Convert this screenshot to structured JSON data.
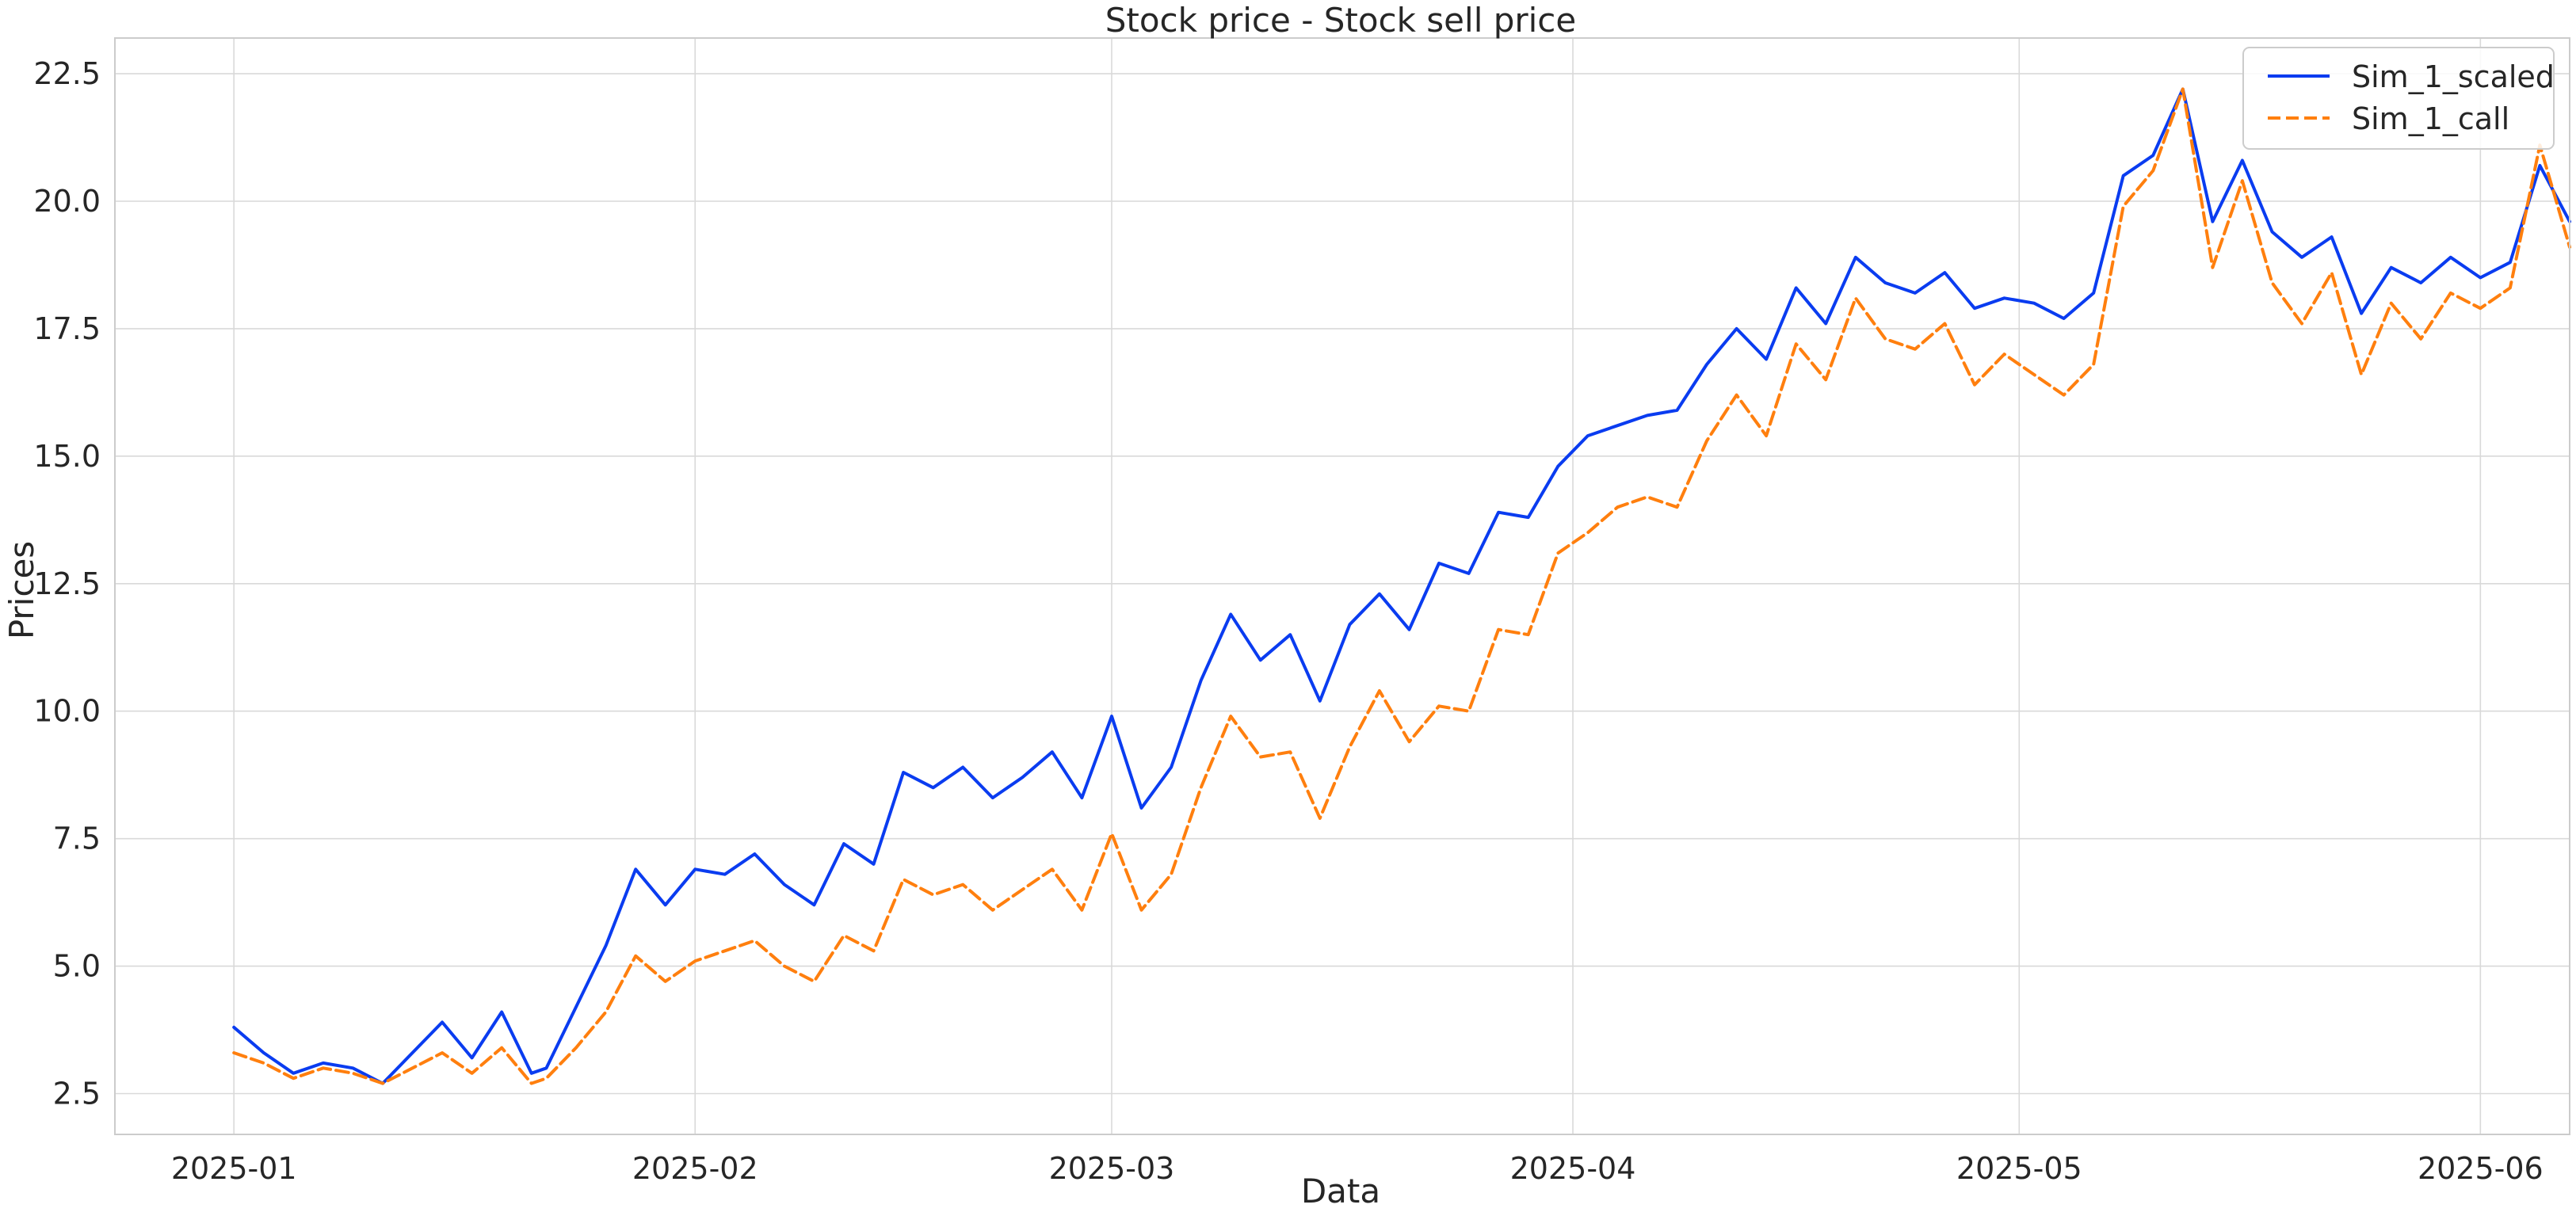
{
  "chart_data": {
    "type": "line",
    "title": "Stock price - Stock sell price",
    "xlabel": "Data",
    "ylabel": "Prices",
    "grid": true,
    "legend_position": "top-right",
    "xlim": [
      "2024-12-24",
      "2025-06-07"
    ],
    "ylim": [
      1.7,
      23.2
    ],
    "x_ticks": [
      "2025-01",
      "2025-02",
      "2025-03",
      "2025-04",
      "2025-05",
      "2025-06"
    ],
    "y_ticks": [
      2.5,
      5.0,
      7.5,
      10.0,
      12.5,
      15.0,
      17.5,
      20.0,
      22.5
    ],
    "y_tick_labels": [
      "2.5",
      "5.0",
      "7.5",
      "10.0",
      "12.5",
      "15.0",
      "17.5",
      "20.0",
      "22.5"
    ],
    "series": [
      {
        "name": "Sim_1_scaled",
        "color": "#0a3cf0",
        "style": "solid",
        "points": [
          [
            "2025-01-01",
            3.8
          ],
          [
            "2025-01-03",
            3.3
          ],
          [
            "2025-01-05",
            2.9
          ],
          [
            "2025-01-07",
            3.1
          ],
          [
            "2025-01-09",
            3.0
          ],
          [
            "2025-01-11",
            2.7
          ],
          [
            "2025-01-13",
            3.3
          ],
          [
            "2025-01-15",
            3.9
          ],
          [
            "2025-01-17",
            3.2
          ],
          [
            "2025-01-19",
            4.1
          ],
          [
            "2025-01-21",
            2.9
          ],
          [
            "2025-01-22",
            3.0
          ],
          [
            "2025-01-24",
            4.2
          ],
          [
            "2025-01-26",
            5.4
          ],
          [
            "2025-01-28",
            6.9
          ],
          [
            "2025-01-30",
            6.2
          ],
          [
            "2025-02-01",
            6.9
          ],
          [
            "2025-02-03",
            6.8
          ],
          [
            "2025-02-05",
            7.2
          ],
          [
            "2025-02-07",
            6.6
          ],
          [
            "2025-02-09",
            6.2
          ],
          [
            "2025-02-11",
            7.4
          ],
          [
            "2025-02-13",
            7.0
          ],
          [
            "2025-02-15",
            8.8
          ],
          [
            "2025-02-17",
            8.5
          ],
          [
            "2025-02-19",
            8.9
          ],
          [
            "2025-02-21",
            8.3
          ],
          [
            "2025-02-23",
            8.7
          ],
          [
            "2025-02-25",
            9.2
          ],
          [
            "2025-02-27",
            8.3
          ],
          [
            "2025-03-01",
            9.9
          ],
          [
            "2025-03-03",
            8.1
          ],
          [
            "2025-03-05",
            8.9
          ],
          [
            "2025-03-07",
            10.6
          ],
          [
            "2025-03-09",
            11.9
          ],
          [
            "2025-03-11",
            11.0
          ],
          [
            "2025-03-13",
            11.5
          ],
          [
            "2025-03-15",
            10.2
          ],
          [
            "2025-03-17",
            11.7
          ],
          [
            "2025-03-19",
            12.3
          ],
          [
            "2025-03-21",
            11.6
          ],
          [
            "2025-03-23",
            12.9
          ],
          [
            "2025-03-25",
            12.7
          ],
          [
            "2025-03-27",
            13.9
          ],
          [
            "2025-03-29",
            13.8
          ],
          [
            "2025-03-31",
            14.8
          ],
          [
            "2025-04-02",
            15.4
          ],
          [
            "2025-04-04",
            15.6
          ],
          [
            "2025-04-06",
            15.8
          ],
          [
            "2025-04-08",
            15.9
          ],
          [
            "2025-04-10",
            16.8
          ],
          [
            "2025-04-12",
            17.5
          ],
          [
            "2025-04-14",
            16.9
          ],
          [
            "2025-04-16",
            18.3
          ],
          [
            "2025-04-18",
            17.6
          ],
          [
            "2025-04-20",
            18.9
          ],
          [
            "2025-04-22",
            18.4
          ],
          [
            "2025-04-24",
            18.2
          ],
          [
            "2025-04-26",
            18.6
          ],
          [
            "2025-04-28",
            17.9
          ],
          [
            "2025-04-30",
            18.1
          ],
          [
            "2025-05-02",
            18.0
          ],
          [
            "2025-05-04",
            17.7
          ],
          [
            "2025-05-06",
            18.2
          ],
          [
            "2025-05-08",
            20.5
          ],
          [
            "2025-05-10",
            20.9
          ],
          [
            "2025-05-12",
            22.2
          ],
          [
            "2025-05-14",
            19.6
          ],
          [
            "2025-05-16",
            20.8
          ],
          [
            "2025-05-18",
            19.4
          ],
          [
            "2025-05-20",
            18.9
          ],
          [
            "2025-05-22",
            19.3
          ],
          [
            "2025-05-24",
            17.8
          ],
          [
            "2025-05-26",
            18.7
          ],
          [
            "2025-05-28",
            18.4
          ],
          [
            "2025-05-30",
            18.9
          ],
          [
            "2025-06-01",
            18.5
          ],
          [
            "2025-06-03",
            18.8
          ],
          [
            "2025-06-05",
            20.7
          ],
          [
            "2025-06-07",
            19.6
          ]
        ]
      },
      {
        "name": "Sim_1_call",
        "color": "#ff7f0e",
        "style": "dashed",
        "points": [
          [
            "2025-01-01",
            3.3
          ],
          [
            "2025-01-03",
            3.1
          ],
          [
            "2025-01-05",
            2.8
          ],
          [
            "2025-01-07",
            3.0
          ],
          [
            "2025-01-09",
            2.9
          ],
          [
            "2025-01-11",
            2.7
          ],
          [
            "2025-01-13",
            3.0
          ],
          [
            "2025-01-15",
            3.3
          ],
          [
            "2025-01-17",
            2.9
          ],
          [
            "2025-01-19",
            3.4
          ],
          [
            "2025-01-21",
            2.7
          ],
          [
            "2025-01-22",
            2.8
          ],
          [
            "2025-01-24",
            3.4
          ],
          [
            "2025-01-26",
            4.1
          ],
          [
            "2025-01-28",
            5.2
          ],
          [
            "2025-01-30",
            4.7
          ],
          [
            "2025-02-01",
            5.1
          ],
          [
            "2025-02-03",
            5.3
          ],
          [
            "2025-02-05",
            5.5
          ],
          [
            "2025-02-07",
            5.0
          ],
          [
            "2025-02-09",
            4.7
          ],
          [
            "2025-02-11",
            5.6
          ],
          [
            "2025-02-13",
            5.3
          ],
          [
            "2025-02-15",
            6.7
          ],
          [
            "2025-02-17",
            6.4
          ],
          [
            "2025-02-19",
            6.6
          ],
          [
            "2025-02-21",
            6.1
          ],
          [
            "2025-02-23",
            6.5
          ],
          [
            "2025-02-25",
            6.9
          ],
          [
            "2025-02-27",
            6.1
          ],
          [
            "2025-03-01",
            7.6
          ],
          [
            "2025-03-03",
            6.1
          ],
          [
            "2025-03-05",
            6.8
          ],
          [
            "2025-03-07",
            8.5
          ],
          [
            "2025-03-09",
            9.9
          ],
          [
            "2025-03-11",
            9.1
          ],
          [
            "2025-03-13",
            9.2
          ],
          [
            "2025-03-15",
            7.9
          ],
          [
            "2025-03-17",
            9.3
          ],
          [
            "2025-03-19",
            10.4
          ],
          [
            "2025-03-21",
            9.4
          ],
          [
            "2025-03-23",
            10.1
          ],
          [
            "2025-03-25",
            10.0
          ],
          [
            "2025-03-27",
            11.6
          ],
          [
            "2025-03-29",
            11.5
          ],
          [
            "2025-03-31",
            13.1
          ],
          [
            "2025-04-02",
            13.5
          ],
          [
            "2025-04-04",
            14.0
          ],
          [
            "2025-04-06",
            14.2
          ],
          [
            "2025-04-08",
            14.0
          ],
          [
            "2025-04-10",
            15.3
          ],
          [
            "2025-04-12",
            16.2
          ],
          [
            "2025-04-14",
            15.4
          ],
          [
            "2025-04-16",
            17.2
          ],
          [
            "2025-04-18",
            16.5
          ],
          [
            "2025-04-20",
            18.1
          ],
          [
            "2025-04-22",
            17.3
          ],
          [
            "2025-04-24",
            17.1
          ],
          [
            "2025-04-26",
            17.6
          ],
          [
            "2025-04-28",
            16.4
          ],
          [
            "2025-04-30",
            17.0
          ],
          [
            "2025-05-02",
            16.6
          ],
          [
            "2025-05-04",
            16.2
          ],
          [
            "2025-05-06",
            16.8
          ],
          [
            "2025-05-08",
            19.9
          ],
          [
            "2025-05-10",
            20.6
          ],
          [
            "2025-05-12",
            22.2
          ],
          [
            "2025-05-14",
            18.7
          ],
          [
            "2025-05-16",
            20.4
          ],
          [
            "2025-05-18",
            18.4
          ],
          [
            "2025-05-20",
            17.6
          ],
          [
            "2025-05-22",
            18.6
          ],
          [
            "2025-05-24",
            16.6
          ],
          [
            "2025-05-26",
            18.0
          ],
          [
            "2025-05-28",
            17.3
          ],
          [
            "2025-05-30",
            18.2
          ],
          [
            "2025-06-01",
            17.9
          ],
          [
            "2025-06-03",
            18.3
          ],
          [
            "2025-06-05",
            21.1
          ],
          [
            "2025-06-07",
            19.1
          ]
        ]
      }
    ]
  }
}
